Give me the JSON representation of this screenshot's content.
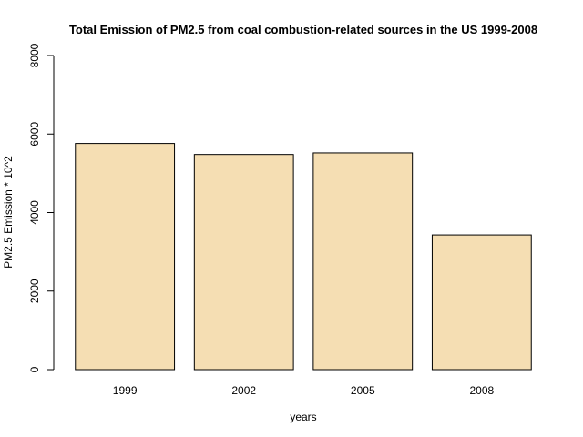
{
  "chart_data": {
    "type": "bar",
    "title": "Total Emission of PM2.5 from coal combustion-related sources in the US 1999-2008",
    "xlabel": "years",
    "ylabel": "PM2.5 Emission * 10^2",
    "categories": [
      "1999",
      "2002",
      "2005",
      "2008"
    ],
    "values": [
      5760,
      5480,
      5520,
      3430
    ],
    "ylim": [
      0,
      8000
    ],
    "yticks": [
      0,
      2000,
      4000,
      6000,
      8000
    ],
    "ytick_labels": [
      "0",
      "2000",
      "4000",
      "6000",
      "8000"
    ],
    "grid": false,
    "legend": "none",
    "bar_color": "#f5deb3",
    "border_color": "#000000"
  }
}
